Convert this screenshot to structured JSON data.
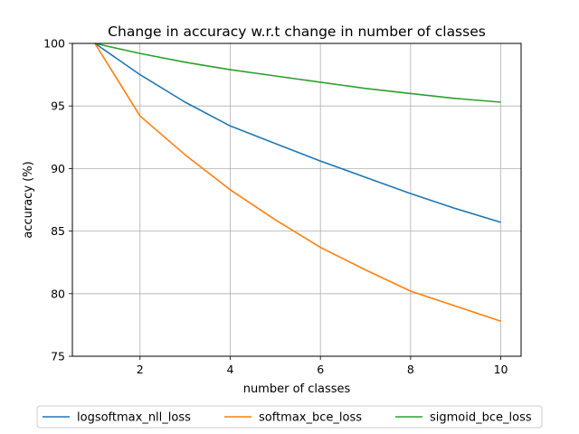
{
  "chart_data": {
    "type": "line",
    "title": "Change in accuracy w.r.t change in number of classes",
    "xlabel": "number of classes",
    "ylabel": "accuracy (%)",
    "x": [
      1,
      2,
      3,
      4,
      5,
      6,
      7,
      8,
      9,
      10
    ],
    "xlim": [
      0.5,
      10.45
    ],
    "ylim": [
      75,
      100
    ],
    "xticks": [
      2,
      4,
      6,
      8,
      10
    ],
    "yticks": [
      75,
      80,
      85,
      90,
      95,
      100
    ],
    "grid": true,
    "legend_position": "bottom-center",
    "series": [
      {
        "name": "logsoftmax_nll_loss",
        "color": "#1f77b4",
        "values": [
          100,
          97.5,
          95.3,
          93.4,
          92.0,
          90.6,
          89.3,
          88.0,
          86.8,
          85.7
        ]
      },
      {
        "name": "softmax_bce_loss",
        "color": "#ff7f0e",
        "values": [
          100,
          94.2,
          91.1,
          88.3,
          85.9,
          83.7,
          81.9,
          80.2,
          79.0,
          77.8
        ]
      },
      {
        "name": "sigmoid_bce_loss",
        "color": "#2ca02c",
        "values": [
          100,
          99.2,
          98.5,
          97.9,
          97.4,
          96.9,
          96.4,
          96.0,
          95.6,
          95.3
        ]
      }
    ]
  }
}
